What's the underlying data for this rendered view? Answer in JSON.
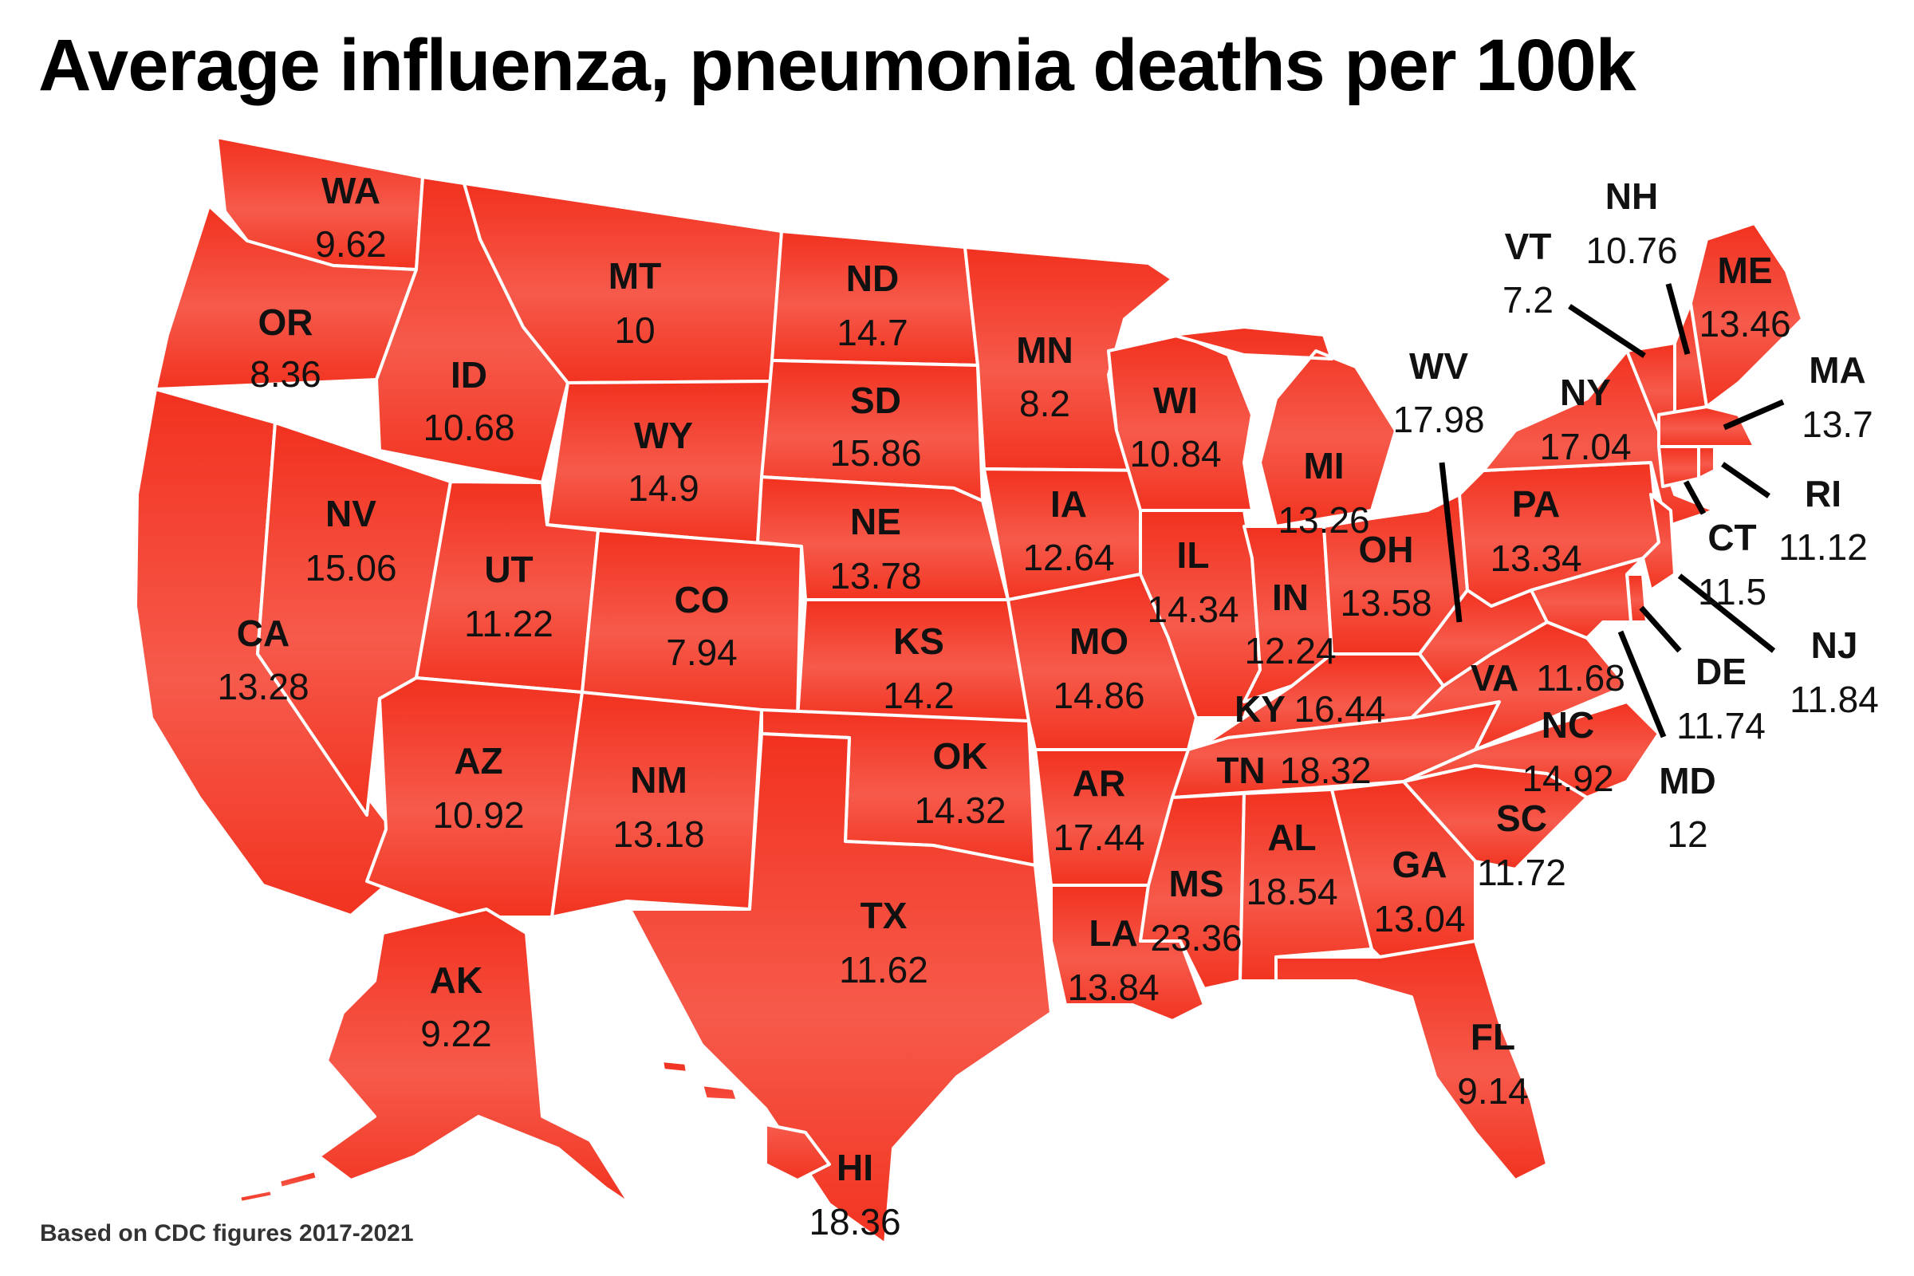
{
  "title": "Average influenza, pneumonia deaths per 100k",
  "source": "Based on CDC figures 2017-2021",
  "colors": {
    "fill_top": "#f2311f",
    "fill_mid": "#f65a4b",
    "fill_bottom": "#f23320",
    "border": "#ffffff",
    "text": "#111111"
  },
  "states": {
    "WA": {
      "label": "WA",
      "value": "9.62"
    },
    "OR": {
      "label": "OR",
      "value": "8.36"
    },
    "CA": {
      "label": "CA",
      "value": "13.28"
    },
    "NV": {
      "label": "NV",
      "value": "15.06"
    },
    "ID": {
      "label": "ID",
      "value": "10.68"
    },
    "MT": {
      "label": "MT",
      "value": "10"
    },
    "WY": {
      "label": "WY",
      "value": "14.9"
    },
    "UT": {
      "label": "UT",
      "value": "11.22"
    },
    "AZ": {
      "label": "AZ",
      "value": "10.92"
    },
    "CO": {
      "label": "CO",
      "value": "7.94"
    },
    "NM": {
      "label": "NM",
      "value": "13.18"
    },
    "ND": {
      "label": "ND",
      "value": "14.7"
    },
    "SD": {
      "label": "SD",
      "value": "15.86"
    },
    "NE": {
      "label": "NE",
      "value": "13.78"
    },
    "KS": {
      "label": "KS",
      "value": "14.2"
    },
    "OK": {
      "label": "OK",
      "value": "14.32"
    },
    "TX": {
      "label": "TX",
      "value": "11.62"
    },
    "MN": {
      "label": "MN",
      "value": "8.2"
    },
    "IA": {
      "label": "IA",
      "value": "12.64"
    },
    "MO": {
      "label": "MO",
      "value": "14.86"
    },
    "AR": {
      "label": "AR",
      "value": "17.44"
    },
    "LA": {
      "label": "LA",
      "value": "13.84"
    },
    "WI": {
      "label": "WI",
      "value": "10.84"
    },
    "IL": {
      "label": "IL",
      "value": "14.34"
    },
    "MI": {
      "label": "MI",
      "value": "13.26"
    },
    "IN": {
      "label": "IN",
      "value": "12.24"
    },
    "OH": {
      "label": "OH",
      "value": "13.58"
    },
    "KY": {
      "label": "KY",
      "value": "16.44"
    },
    "TN": {
      "label": "TN",
      "value": "18.32"
    },
    "MS": {
      "label": "MS",
      "value": "23.36"
    },
    "AL": {
      "label": "AL",
      "value": "18.54"
    },
    "GA": {
      "label": "GA",
      "value": "13.04"
    },
    "FL": {
      "label": "FL",
      "value": "9.14"
    },
    "SC": {
      "label": "SC",
      "value": "11.72"
    },
    "NC": {
      "label": "NC",
      "value": "14.92"
    },
    "VA": {
      "label": "VA",
      "value": "11.68"
    },
    "WV": {
      "label": "WV",
      "value": "17.98"
    },
    "PA": {
      "label": "PA",
      "value": "13.34"
    },
    "NY": {
      "label": "NY",
      "value": "17.04"
    },
    "VT": {
      "label": "VT",
      "value": "7.2"
    },
    "NH": {
      "label": "NH",
      "value": "10.76"
    },
    "ME": {
      "label": "ME",
      "value": "13.46"
    },
    "MA": {
      "label": "MA",
      "value": "13.7"
    },
    "RI": {
      "label": "RI",
      "value": "11.12"
    },
    "CT": {
      "label": "CT",
      "value": "11.5"
    },
    "NJ": {
      "label": "NJ",
      "value": "11.84"
    },
    "DE": {
      "label": "DE",
      "value": "11.74"
    },
    "MD": {
      "label": "MD",
      "value": "12"
    },
    "AK": {
      "label": "AK",
      "value": "9.22"
    },
    "HI": {
      "label": "HI",
      "value": "18.36"
    }
  }
}
